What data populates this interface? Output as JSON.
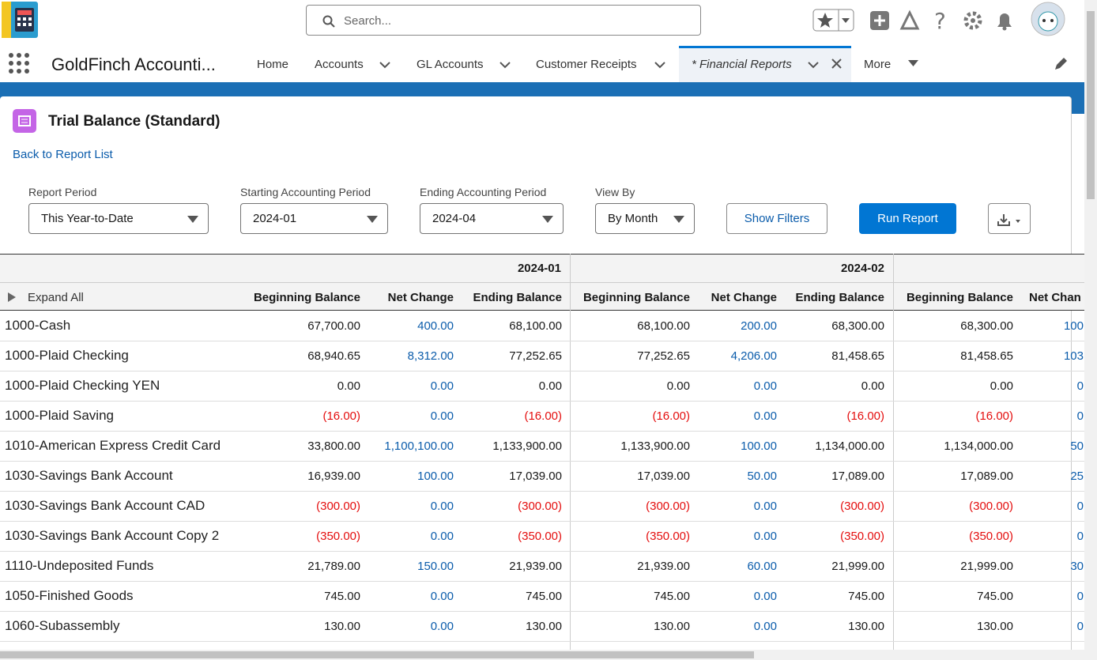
{
  "header": {
    "search_placeholder": "Search...",
    "app_name": "GoldFinch Accounti..."
  },
  "nav": [
    "Home",
    "Accounts",
    "GL Accounts",
    "Customer Receipts",
    "* Financial Reports",
    "More"
  ],
  "report": {
    "title": "Trial Balance (Standard)",
    "back_link": "Back to Report List",
    "filters": [
      {
        "label": "Report Period",
        "value": "This Year-to-Date"
      },
      {
        "label": "Starting Accounting Period",
        "value": "2024-01"
      },
      {
        "label": "Ending Accounting Period",
        "value": "2024-04"
      },
      {
        "label": "View By",
        "value": "By Month"
      }
    ],
    "show_filters": "Show Filters",
    "run_report": "Run Report"
  },
  "table": {
    "periods": [
      "2024-01",
      "2024-02"
    ],
    "expand_all": "Expand All",
    "columns": [
      "Beginning Balance",
      "Net Change",
      "Ending Balance",
      "Beginning Balance",
      "Net Change",
      "Ending Balance",
      "Beginning Balance",
      "Net Chan"
    ],
    "rows": [
      {
        "account": "1000-Cash",
        "cells": [
          "67,700.00",
          "400.00",
          "68,100.00",
          "68,100.00",
          "200.00",
          "68,300.00",
          "68,300.00",
          "100"
        ]
      },
      {
        "account": "1000-Plaid Checking",
        "cells": [
          "68,940.65",
          "8,312.00",
          "77,252.65",
          "77,252.65",
          "4,206.00",
          "81,458.65",
          "81,458.65",
          "103"
        ]
      },
      {
        "account": "1000-Plaid Checking YEN",
        "cells": [
          "0.00",
          "0.00",
          "0.00",
          "0.00",
          "0.00",
          "0.00",
          "0.00",
          "0"
        ]
      },
      {
        "account": "1000-Plaid Saving",
        "cells": [
          "(16.00)",
          "0.00",
          "(16.00)",
          "(16.00)",
          "0.00",
          "(16.00)",
          "(16.00)",
          "0"
        ]
      },
      {
        "account": "1010-American Express Credit Card",
        "cells": [
          "33,800.00",
          "1,100,100.00",
          "1,133,900.00",
          "1,133,900.00",
          "100.00",
          "1,134,000.00",
          "1,134,000.00",
          "50"
        ]
      },
      {
        "account": "1030-Savings Bank Account",
        "cells": [
          "16,939.00",
          "100.00",
          "17,039.00",
          "17,039.00",
          "50.00",
          "17,089.00",
          "17,089.00",
          "25"
        ]
      },
      {
        "account": "1030-Savings Bank Account CAD",
        "cells": [
          "(300.00)",
          "0.00",
          "(300.00)",
          "(300.00)",
          "0.00",
          "(300.00)",
          "(300.00)",
          "0"
        ]
      },
      {
        "account": "1030-Savings Bank Account Copy 2",
        "cells": [
          "(350.00)",
          "0.00",
          "(350.00)",
          "(350.00)",
          "0.00",
          "(350.00)",
          "(350.00)",
          "0"
        ]
      },
      {
        "account": "1110-Undeposited Funds",
        "cells": [
          "21,789.00",
          "150.00",
          "21,939.00",
          "21,939.00",
          "60.00",
          "21,999.00",
          "21,999.00",
          "30"
        ]
      },
      {
        "account": "1050-Finished Goods",
        "cells": [
          "745.00",
          "0.00",
          "745.00",
          "745.00",
          "0.00",
          "745.00",
          "745.00",
          "0"
        ]
      },
      {
        "account": "1060-Subassembly",
        "cells": [
          "130.00",
          "0.00",
          "130.00",
          "130.00",
          "0.00",
          "130.00",
          "130.00",
          "0"
        ]
      }
    ]
  }
}
